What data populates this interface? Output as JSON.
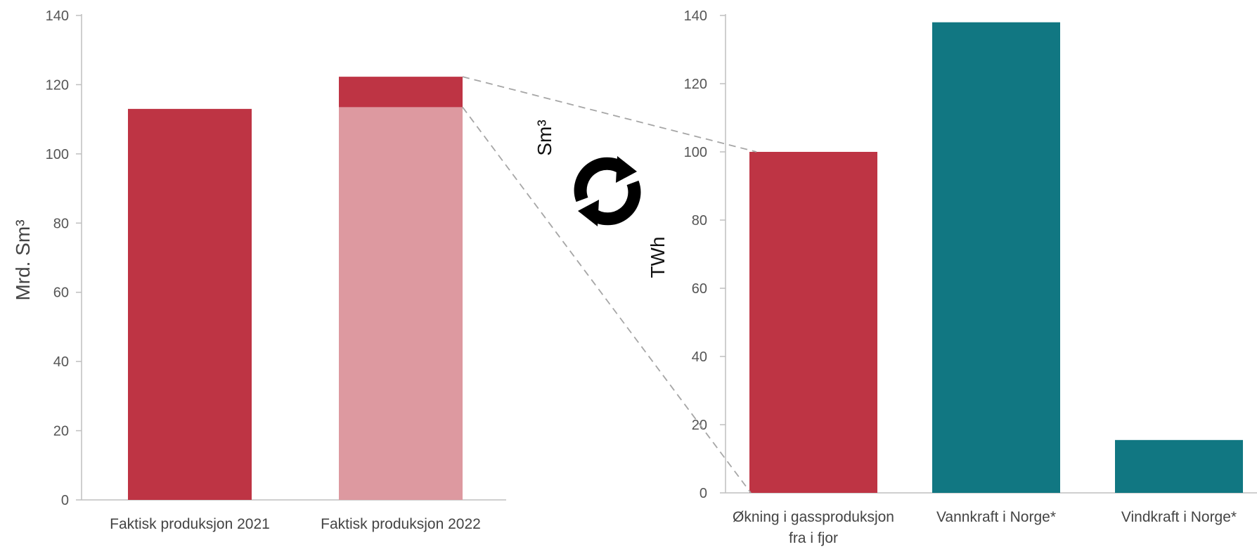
{
  "colors": {
    "red": "#be3444",
    "light_red": "#dd99a0",
    "teal": "#117782",
    "axis": "#bfbfbf",
    "connector": "#a6a6a6",
    "icon": "#000000"
  },
  "units": {
    "top": "Sm³",
    "bottom": "TWh"
  },
  "icon": "refresh-arrows-icon",
  "chart_data": [
    {
      "type": "bar",
      "stacked": true,
      "ylabel": "Mrd. Sm³",
      "ylim": [
        0,
        140
      ],
      "yticks": [
        "0",
        "20",
        "40",
        "60",
        "80",
        "100",
        "120",
        "140"
      ],
      "categories": [
        "Faktisk produksjon 2021",
        "Faktisk produksjon 2022"
      ],
      "series": [
        {
          "values": [
            113,
            113.5
          ],
          "colors": [
            "#be3444",
            "#dd99a0"
          ]
        },
        {
          "values": [
            0,
            8.8
          ],
          "colors": [
            "#be3444",
            "#be3444"
          ]
        }
      ]
    },
    {
      "type": "bar",
      "ylabel": "",
      "ylim": [
        0,
        140
      ],
      "yticks": [
        "0",
        "20",
        "40",
        "60",
        "80",
        "100",
        "120",
        "140"
      ],
      "categories": [
        "Økning i gassproduksjon fra i fjor",
        "Vannkraft i Norge*",
        "Vindkraft i Norge*"
      ],
      "category_lines": [
        [
          "Økning i gassproduksjon",
          "fra i fjor"
        ],
        [
          "Vannkraft i Norge*"
        ],
        [
          "Vindkraft i Norge*"
        ]
      ],
      "values": [
        100,
        138,
        15.5
      ],
      "colors": [
        "#be3444",
        "#117782",
        "#117782"
      ]
    }
  ]
}
